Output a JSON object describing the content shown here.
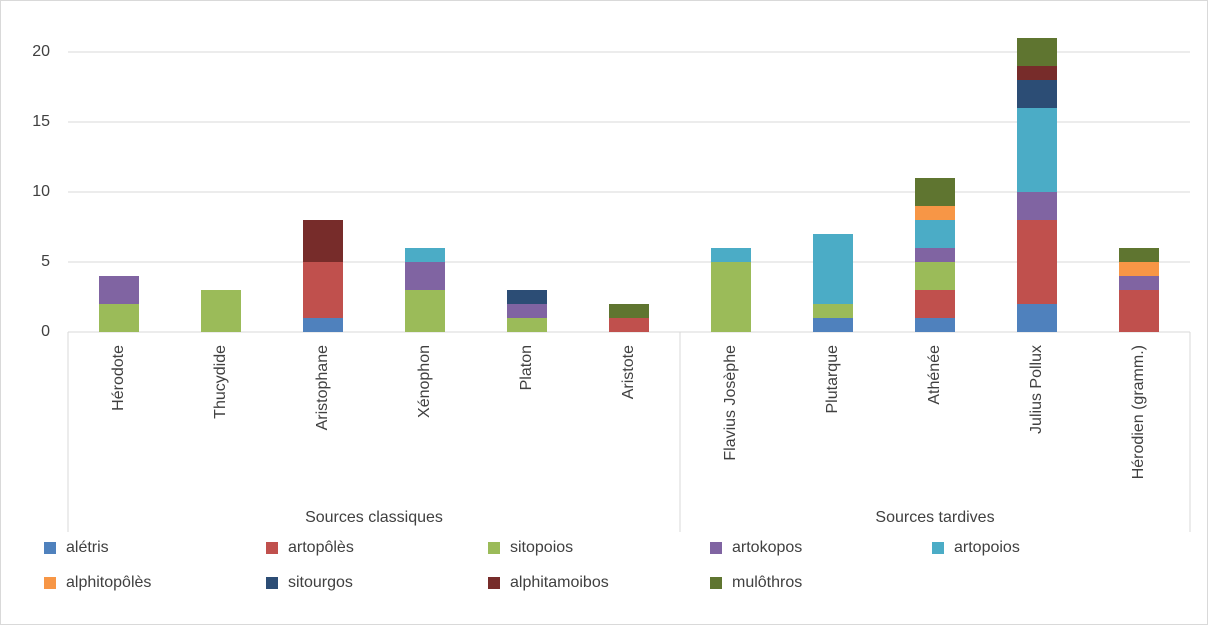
{
  "chart_data": {
    "type": "stacked_bar",
    "categories": [
      "Hérodote",
      "Thucydide",
      "Aristophane",
      "Xénophon",
      "Platon",
      "Aristote",
      "Flavius Josèphe",
      "Plutarque",
      "Athénée",
      "Julius Pollux",
      "Hérodien (gramm.)"
    ],
    "groups": [
      {
        "name": "Sources classiques",
        "size": 6
      },
      {
        "name": "Sources tardives",
        "size": 5
      }
    ],
    "series": [
      {
        "name": "alétris",
        "color": "#4f81bd",
        "values": [
          0,
          0,
          1,
          0,
          0,
          0,
          0,
          1,
          1,
          2,
          0
        ]
      },
      {
        "name": "artopôlès",
        "color": "#c0504d",
        "values": [
          0,
          0,
          4,
          0,
          0,
          1,
          0,
          0,
          2,
          6,
          3
        ]
      },
      {
        "name": "sitopoios",
        "color": "#9bbb59",
        "values": [
          2,
          3,
          0,
          3,
          1,
          0,
          5,
          1,
          2,
          0,
          0
        ]
      },
      {
        "name": "artokopos",
        "color": "#8064a2",
        "values": [
          2,
          0,
          0,
          2,
          1,
          0,
          0,
          0,
          1,
          2,
          1
        ]
      },
      {
        "name": "artopoios",
        "color": "#4bacc6",
        "values": [
          0,
          0,
          0,
          1,
          0,
          0,
          1,
          5,
          2,
          6,
          0
        ]
      },
      {
        "name": "alphitopôlès",
        "color": "#f79646",
        "values": [
          0,
          0,
          0,
          0,
          0,
          0,
          0,
          0,
          1,
          0,
          1
        ]
      },
      {
        "name": "sitourgos",
        "color": "#2c4d75",
        "values": [
          0,
          0,
          0,
          0,
          1,
          0,
          0,
          0,
          0,
          2,
          0
        ]
      },
      {
        "name": "alphitamoibos",
        "color": "#772c2a",
        "values": [
          0,
          0,
          3,
          0,
          0,
          0,
          0,
          0,
          0,
          1,
          0
        ]
      },
      {
        "name": "mulôthros",
        "color": "#5f7530",
        "values": [
          0,
          0,
          0,
          0,
          0,
          1,
          0,
          0,
          2,
          2,
          1
        ]
      }
    ],
    "ylim": [
      0,
      20
    ],
    "yticks": [
      0,
      5,
      10,
      15,
      20
    ],
    "grid": true,
    "legend": "bottom"
  }
}
